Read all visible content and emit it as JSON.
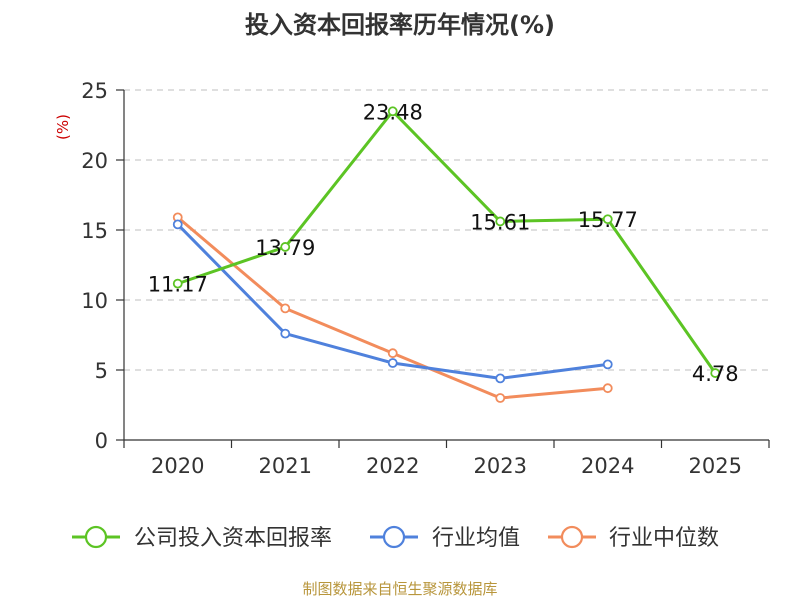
{
  "chart_data": {
    "type": "line",
    "title": "投入资本回报率历年情况(%)",
    "ylabel": "(%)",
    "xlabel": "",
    "categories": [
      "2020",
      "2021",
      "2022",
      "2023",
      "2024",
      "2025"
    ],
    "ylim": [
      0,
      25
    ],
    "yticks": [
      0,
      5,
      10,
      15,
      20,
      25
    ],
    "grid": true,
    "legend_position": "bottom",
    "series": [
      {
        "name": "公司投入资本回报率",
        "color": "#5cc424",
        "values": [
          11.17,
          13.79,
          23.48,
          15.61,
          15.77,
          4.78
        ],
        "labels": [
          "11.17",
          "13.79",
          "23.48",
          "15.61",
          "15.77",
          "4.78"
        ]
      },
      {
        "name": "行业均值",
        "color": "#4f81dc",
        "values": [
          15.4,
          7.6,
          5.5,
          4.4,
          5.4,
          null
        ]
      },
      {
        "name": "行业中位数",
        "color": "#f28c5c",
        "values": [
          15.9,
          9.4,
          6.2,
          3.0,
          3.7,
          null
        ]
      }
    ],
    "source": "制图数据来自恒生聚源数据库"
  },
  "colors": {
    "axis": "#333333",
    "grid": "#cccccc",
    "ylabel": "#cc0000",
    "source": "#b8963c"
  }
}
